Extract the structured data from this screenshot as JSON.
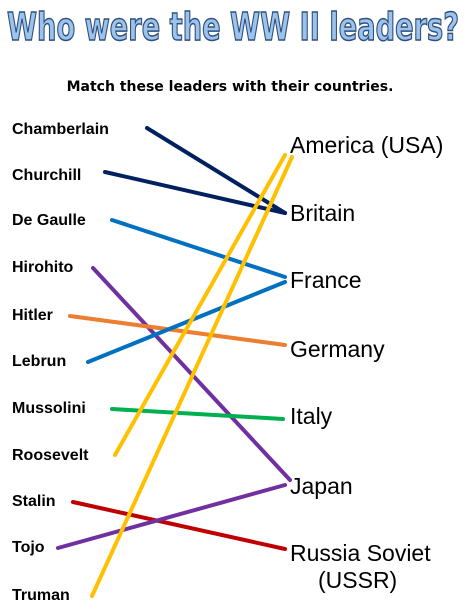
{
  "header": {
    "title": "Who were the WW II leaders?",
    "instruction": "Match these leaders with their countries."
  },
  "leaders": [
    "Chamberlain",
    "Churchill",
    "De Gaulle",
    "Hirohito",
    "Hitler",
    "Lebrun",
    "Mussolini",
    "Roosevelt",
    "Stalin",
    "Tojo",
    "Truman"
  ],
  "countries": [
    {
      "lines": [
        "America (USA)"
      ]
    },
    {
      "lines": [
        "Britain"
      ]
    },
    {
      "lines": [
        "France"
      ]
    },
    {
      "lines": [
        "Germany"
      ]
    },
    {
      "lines": [
        "Italy"
      ]
    },
    {
      "lines": [
        "Japan"
      ]
    },
    {
      "lines": [
        "Russia Soviet",
        "(USSR)"
      ]
    }
  ]
}
